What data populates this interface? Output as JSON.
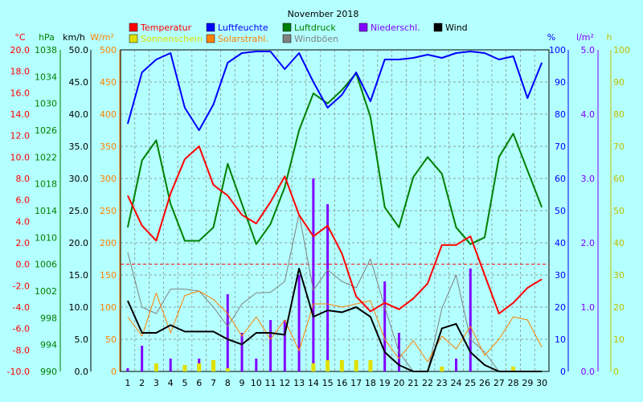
{
  "chart_data": {
    "type": "line",
    "title": "November 2018",
    "x": [
      1,
      2,
      3,
      4,
      5,
      6,
      7,
      8,
      9,
      10,
      11,
      12,
      13,
      14,
      15,
      16,
      17,
      18,
      19,
      20,
      21,
      22,
      23,
      24,
      25,
      26,
      27,
      28,
      29,
      30
    ],
    "axes": [
      {
        "id": "temp",
        "unit": "°C",
        "color": "#ff0000",
        "min": -10,
        "max": 20,
        "ticks": [
          "20.0",
          "18.0",
          "16.0",
          "14.0",
          "12.0",
          "10.0",
          "8.0",
          "6.0",
          "4.0",
          "2.0",
          "0.0",
          "-2.0",
          "-4.0",
          "-6.0",
          "-8.0",
          "-10.0"
        ]
      },
      {
        "id": "press",
        "unit": "hPa",
        "color": "#008000",
        "min": 990,
        "max": 1038,
        "ticks": [
          "1038",
          "1034",
          "1030",
          "1026",
          "1022",
          "1018",
          "1014",
          "1010",
          "1006",
          "1002",
          "998",
          "994",
          "990"
        ]
      },
      {
        "id": "wind",
        "unit": "km/h",
        "color": "#000000",
        "min": 0,
        "max": 50,
        "ticks": [
          "50.0",
          "45.0",
          "40.0",
          "35.0",
          "30.0",
          "25.0",
          "20.0",
          "15.0",
          "10.0",
          "5.0",
          "0.0"
        ]
      },
      {
        "id": "solar",
        "unit": "W/m²",
        "color": "#ff8000",
        "min": 0,
        "max": 500,
        "ticks": [
          "500",
          "450",
          "400",
          "350",
          "300",
          "250",
          "200",
          "150",
          "100",
          "50",
          "0"
        ]
      },
      {
        "id": "hum",
        "unit": "%",
        "color": "#0000ff",
        "min": 0,
        "max": 100,
        "ticks": [
          "100",
          "90",
          "80",
          "70",
          "60",
          "50",
          "40",
          "30",
          "20",
          "10",
          "0"
        ]
      },
      {
        "id": "rain",
        "unit": "l/m²",
        "color": "#8000ff",
        "min": 0,
        "max": 5,
        "ticks": [
          "5.0",
          "4.0",
          "3.0",
          "2.0",
          "1.0",
          "0.0"
        ]
      },
      {
        "id": "sun",
        "unit": "h",
        "color": "#c0c000",
        "min": 0,
        "max": 100,
        "ticks": [
          "100",
          "90",
          "80",
          "70",
          "60",
          "50",
          "40",
          "30",
          "20",
          "10",
          "0"
        ]
      }
    ],
    "legend": [
      {
        "name": "Temperatur",
        "color": "#ff0000"
      },
      {
        "name": "Luftfeuchte",
        "color": "#0000ff"
      },
      {
        "name": "Luftdruck",
        "color": "#008000"
      },
      {
        "name": "Niederschl.",
        "color": "#8000ff"
      },
      {
        "name": "Wind",
        "color": "#000000"
      },
      {
        "name": "Sonnenschein",
        "color": "#e0e000"
      },
      {
        "name": "Solarstrahl.",
        "color": "#ff8000"
      },
      {
        "name": "Windböen",
        "color": "#808080"
      }
    ],
    "series": [
      {
        "name": "Windböen",
        "axis": "wind",
        "kind": "line",
        "color": "#808080",
        "width": 1,
        "values": [
          18.5,
          10,
          9,
          12.8,
          12.8,
          12.5,
          10,
          7,
          10.5,
          12.2,
          12.3,
          14,
          24.5,
          12.6,
          15.8,
          14,
          13,
          17.5,
          10,
          3,
          0,
          0,
          9.8,
          15,
          5,
          3,
          0,
          0,
          0,
          0
        ]
      },
      {
        "name": "Solarstrahl.",
        "axis": "solar",
        "kind": "line",
        "color": "#ff8000",
        "width": 1,
        "values": [
          85,
          55,
          122,
          60,
          118,
          125,
          112,
          90,
          55,
          85,
          50,
          80,
          32,
          105,
          105,
          100,
          105,
          110,
          50,
          20,
          48,
          15,
          55,
          35,
          70,
          25,
          50,
          85,
          80,
          38
        ]
      },
      {
        "name": "Luftdruck",
        "axis": "press",
        "kind": "line",
        "color": "#008000",
        "width": 2,
        "values": [
          1011.5,
          1021.5,
          1024.5,
          1015,
          1009.5,
          1009.5,
          1011.5,
          1021,
          1015,
          1009,
          1012,
          1017.5,
          1026,
          1031.5,
          1030,
          1032,
          1034.5,
          1028,
          1014.5,
          1011.5,
          1019,
          1022,
          1019.5,
          1011.5,
          1009,
          1010,
          1022,
          1025.5,
          1020,
          1014.5
        ]
      },
      {
        "name": "Luftfeuchte",
        "axis": "hum",
        "kind": "line",
        "color": "#0000ff",
        "width": 2,
        "values": [
          77,
          93,
          97,
          99,
          82,
          75,
          83,
          96,
          99,
          99.5,
          99.5,
          94,
          99,
          90,
          82,
          86,
          93,
          84,
          97,
          97,
          97.5,
          98.5,
          97.5,
          99,
          99.5,
          99,
          97,
          98,
          85,
          96
        ]
      },
      {
        "name": "Temperatur",
        "axis": "temp",
        "kind": "line",
        "color": "#ff0000",
        "width": 2,
        "values": [
          6.4,
          3.6,
          2.2,
          6.6,
          9.8,
          11,
          7.4,
          6.4,
          4.6,
          3.8,
          5.8,
          8.2,
          4.6,
          2.6,
          3.6,
          1,
          -3,
          -4.4,
          -3.6,
          -4.2,
          -3.2,
          -1.8,
          1.8,
          1.8,
          2.6,
          -1,
          -4.6,
          -3.6,
          -2.2,
          -1.4
        ]
      },
      {
        "name": "Wind",
        "axis": "wind",
        "kind": "line",
        "color": "#000000",
        "width": 2,
        "values": [
          11,
          6,
          6,
          7.2,
          6.2,
          6.2,
          6.2,
          5,
          4.2,
          6,
          6,
          5.7,
          16,
          8.5,
          9.5,
          9.2,
          10,
          8.5,
          3,
          1,
          0,
          0,
          6.7,
          7.4,
          3,
          1,
          0,
          0,
          0,
          0
        ]
      },
      {
        "name": "Niederschl.",
        "axis": "rain",
        "kind": "bar",
        "color": "#8000ff",
        "barWidth": 3,
        "values": [
          0.05,
          0.4,
          0,
          0.2,
          0,
          0.2,
          0,
          1.2,
          0.6,
          0.2,
          0.8,
          0.8,
          1.5,
          3.0,
          2.6,
          0,
          0,
          0,
          1.4,
          0.6,
          0,
          0,
          0,
          0.2,
          1.6,
          0,
          0,
          0,
          0,
          0
        ]
      },
      {
        "name": "Sonnenschein",
        "axis": "sun",
        "kind": "bar",
        "color": "#e0e000",
        "barWidth": 5,
        "values": [
          0,
          0,
          2.5,
          0,
          2,
          2.5,
          3.5,
          1,
          0,
          0,
          0,
          0,
          0,
          2.5,
          3.5,
          3.5,
          3.5,
          3.5,
          0,
          0,
          0,
          0,
          1.5,
          0,
          0,
          0,
          0,
          1.5,
          0,
          0
        ]
      }
    ],
    "reference_line": {
      "axis": "temp",
      "value": 0,
      "color": "#ff0000"
    },
    "grid": true
  }
}
